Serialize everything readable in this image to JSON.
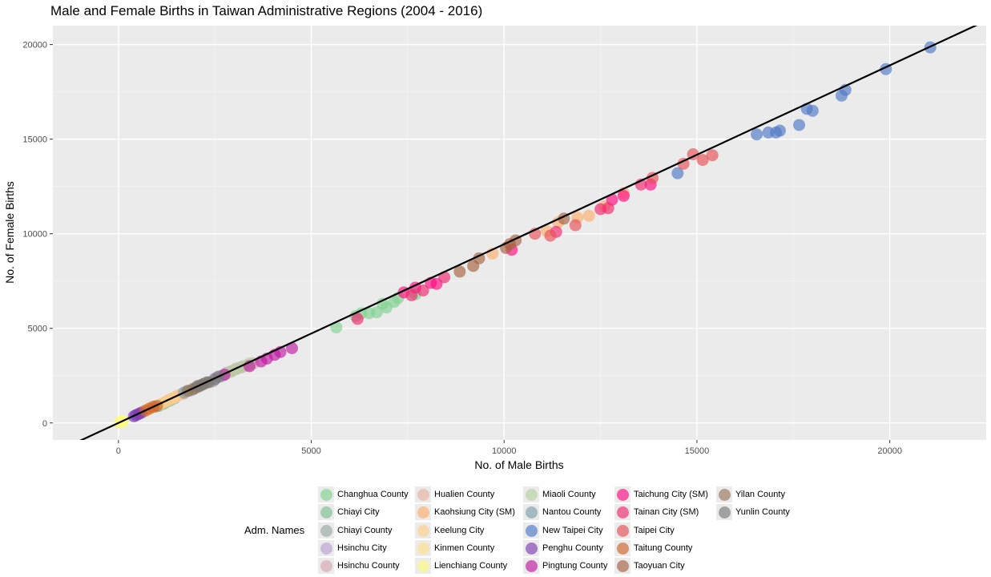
{
  "chart_data": {
    "type": "scatter",
    "title": "Male and Female Births in Taiwan Administrative Regions (2004 - 2016)",
    "xlabel": "No. of Male Births",
    "ylabel": "No. of Female Births",
    "xlim": [
      -1700,
      22500
    ],
    "ylim": [
      -900,
      21000
    ],
    "x_ticks": [
      0,
      5000,
      10000,
      15000,
      20000
    ],
    "y_ticks": [
      0,
      5000,
      10000,
      15000,
      20000
    ],
    "grid": true,
    "reference_line": {
      "slope": 0.945,
      "intercept": 0
    },
    "legend_title": "Adm. Names",
    "legend_position": "bottom",
    "series": [
      {
        "name": "Changhua County",
        "color": "#7fd38f",
        "points": [
          [
            5650,
            5050
          ],
          [
            6150,
            5650
          ],
          [
            6300,
            5800
          ],
          [
            6500,
            5800
          ],
          [
            6700,
            5850
          ],
          [
            6850,
            6300
          ],
          [
            6950,
            6100
          ],
          [
            7150,
            6400
          ],
          [
            7250,
            6600
          ],
          [
            7700,
            6800
          ]
        ]
      },
      {
        "name": "Chiayi City",
        "color": "#80bf8f",
        "points": [
          [
            950,
            850
          ],
          [
            1050,
            900
          ],
          [
            1150,
            1000
          ],
          [
            1200,
            1050
          ],
          [
            1300,
            1150
          ],
          [
            1350,
            1200
          ],
          [
            1450,
            1300
          ]
        ]
      },
      {
        "name": "Chiayi County",
        "color": "#98a8a2",
        "points": [
          [
            1750,
            1650
          ],
          [
            1900,
            1750
          ],
          [
            2100,
            1950
          ],
          [
            2250,
            2100
          ],
          [
            2450,
            2200
          ],
          [
            2550,
            2400
          ],
          [
            2700,
            2500
          ]
        ]
      },
      {
        "name": "Hsinchu City",
        "color": "#b9a0d2",
        "points": [
          [
            2500,
            2350
          ],
          [
            2650,
            2450
          ],
          [
            2800,
            2650
          ],
          [
            2950,
            2750
          ],
          [
            3050,
            2850
          ],
          [
            3200,
            2950
          ]
        ]
      },
      {
        "name": "Hsinchu County",
        "color": "#d7a7b0",
        "points": [
          [
            2900,
            2700
          ],
          [
            3050,
            2850
          ],
          [
            3200,
            2950
          ],
          [
            3350,
            3050
          ],
          [
            3500,
            3150
          ]
        ]
      },
      {
        "name": "Hualien County",
        "color": "#e8b0a0",
        "points": [
          [
            1300,
            1200
          ],
          [
            1400,
            1300
          ],
          [
            1500,
            1400
          ],
          [
            1600,
            1500
          ],
          [
            1700,
            1550
          ]
        ]
      },
      {
        "name": "Kaohsiung City (SM)",
        "color": "#fdae6b",
        "points": [
          [
            9700,
            8950
          ],
          [
            11100,
            10150
          ],
          [
            11400,
            10600
          ],
          [
            11900,
            10850
          ],
          [
            12200,
            10950
          ],
          [
            12600,
            11450
          ],
          [
            13100,
            12150
          ]
        ]
      },
      {
        "name": "Keelung City",
        "color": "#fdd08a",
        "points": [
          [
            1100,
            1000
          ],
          [
            1200,
            1100
          ],
          [
            1300,
            1200
          ],
          [
            1400,
            1300
          ],
          [
            1500,
            1400
          ]
        ]
      },
      {
        "name": "Kinmen County",
        "color": "#ffe085",
        "points": [
          [
            550,
            500
          ],
          [
            650,
            600
          ],
          [
            750,
            700
          ],
          [
            850,
            800
          ]
        ]
      },
      {
        "name": "Lienchiang County",
        "color": "#fcfc80",
        "points": [
          [
            40,
            30
          ],
          [
            60,
            50
          ],
          [
            80,
            70
          ],
          [
            100,
            90
          ],
          [
            120,
            110
          ]
        ]
      },
      {
        "name": "Miaoli County",
        "color": "#b7d39f",
        "points": [
          [
            2800,
            2600
          ],
          [
            2950,
            2750
          ],
          [
            3100,
            2900
          ],
          [
            3250,
            3000
          ],
          [
            3400,
            3150
          ]
        ]
      },
      {
        "name": "Nantou County",
        "color": "#7f9fa6",
        "points": [
          [
            1700,
            1600
          ],
          [
            1850,
            1700
          ],
          [
            1950,
            1800
          ],
          [
            2100,
            1950
          ],
          [
            2200,
            2050
          ]
        ]
      },
      {
        "name": "New Taipei City",
        "color": "#4f78c4",
        "points": [
          [
            14500,
            13200
          ],
          [
            16550,
            15250
          ],
          [
            16850,
            15350
          ],
          [
            17050,
            15350
          ],
          [
            17150,
            15450
          ],
          [
            17650,
            15750
          ],
          [
            17850,
            16600
          ],
          [
            18000,
            16500
          ],
          [
            18750,
            17300
          ],
          [
            18850,
            17600
          ],
          [
            19900,
            18700
          ],
          [
            21050,
            19850
          ]
        ]
      },
      {
        "name": "Penghu County",
        "color": "#7f3fb3",
        "points": [
          [
            400,
            350
          ],
          [
            450,
            400
          ],
          [
            500,
            450
          ],
          [
            550,
            500
          ],
          [
            600,
            550
          ]
        ]
      },
      {
        "name": "Pingtung County",
        "color": "#c0189f",
        "points": [
          [
            2750,
            2550
          ],
          [
            3400,
            3000
          ],
          [
            3700,
            3250
          ],
          [
            3850,
            3400
          ],
          [
            4050,
            3600
          ],
          [
            4200,
            3750
          ],
          [
            4500,
            3950
          ]
        ]
      },
      {
        "name": "Taichung City (SM)",
        "color": "#ff0a82",
        "points": [
          [
            7400,
            6900
          ],
          [
            7700,
            7150
          ],
          [
            8100,
            7400
          ],
          [
            8250,
            7350
          ],
          [
            10200,
            9150
          ],
          [
            12800,
            11800
          ],
          [
            13100,
            12000
          ],
          [
            13800,
            12600
          ]
        ]
      },
      {
        "name": "Tainan City (SM)",
        "color": "#f0266f",
        "points": [
          [
            6200,
            5500
          ],
          [
            7600,
            6750
          ],
          [
            7900,
            7000
          ],
          [
            8450,
            7700
          ],
          [
            11350,
            10100
          ],
          [
            12500,
            11300
          ],
          [
            12700,
            11350
          ],
          [
            13550,
            12600
          ]
        ]
      },
      {
        "name": "Taipei City",
        "color": "#e65055",
        "points": [
          [
            10800,
            10000
          ],
          [
            11200,
            9900
          ],
          [
            11850,
            10450
          ],
          [
            13850,
            12950
          ],
          [
            14650,
            13700
          ],
          [
            14900,
            14200
          ],
          [
            15150,
            13900
          ],
          [
            15400,
            14150
          ]
        ]
      },
      {
        "name": "Taitung County",
        "color": "#d0642a",
        "points": [
          [
            700,
            650
          ],
          [
            800,
            750
          ],
          [
            900,
            850
          ],
          [
            1000,
            900
          ]
        ]
      },
      {
        "name": "Taoyuan City",
        "color": "#a5613f",
        "points": [
          [
            8850,
            8000
          ],
          [
            9200,
            8300
          ],
          [
            9350,
            8700
          ],
          [
            10050,
            9250
          ],
          [
            10150,
            9450
          ],
          [
            10300,
            9650
          ],
          [
            11550,
            10800
          ]
        ]
      },
      {
        "name": "Yilan County",
        "color": "#9a7559",
        "points": [
          [
            1800,
            1700
          ],
          [
            1950,
            1800
          ],
          [
            2050,
            1900
          ],
          [
            2150,
            2000
          ],
          [
            2300,
            2150
          ]
        ]
      },
      {
        "name": "Yunlin County",
        "color": "#7a7a7a",
        "points": [
          [
            2050,
            1950
          ],
          [
            2200,
            2050
          ],
          [
            2350,
            2150
          ],
          [
            2500,
            2300
          ],
          [
            2600,
            2450
          ]
        ]
      }
    ]
  }
}
